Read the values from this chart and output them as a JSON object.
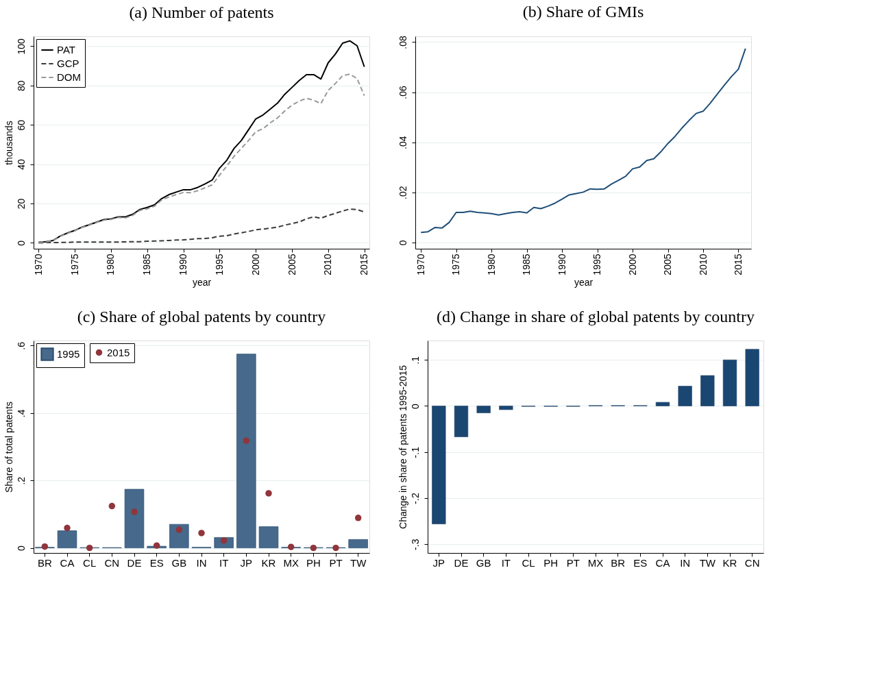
{
  "chart_data": [
    {
      "type": "line",
      "title": "(a) Number of patents",
      "xlabel": "year",
      "ylabel": "thousands",
      "x": [
        1970,
        1971,
        1972,
        1973,
        1974,
        1975,
        1976,
        1977,
        1978,
        1979,
        1980,
        1981,
        1982,
        1983,
        1984,
        1985,
        1986,
        1987,
        1988,
        1989,
        1990,
        1991,
        1992,
        1993,
        1994,
        1995,
        1996,
        1997,
        1998,
        1999,
        2000,
        2001,
        2002,
        2003,
        2004,
        2005,
        2006,
        2007,
        2008,
        2009,
        2010,
        2011,
        2012,
        2013,
        2014,
        2015
      ],
      "series": [
        {
          "name": "PAT",
          "color": "#000000",
          "line_style": "solid",
          "values": [
            0.3,
            0.6,
            1.2,
            3.5,
            5,
            6.3,
            8,
            9.2,
            10.5,
            11.8,
            12.2,
            13.2,
            13.2,
            14.5,
            17,
            18,
            19.3,
            22.5,
            24.5,
            25.8,
            27,
            27,
            28.2,
            30,
            32,
            38,
            42,
            48,
            52,
            57.5,
            63,
            65,
            68,
            71,
            75.5,
            79,
            82.5,
            85.5,
            85.5,
            83.3,
            91.5,
            96,
            101.5,
            102.7,
            100.2,
            89.5
          ]
        },
        {
          "name": "GCP",
          "color": "#3a3a3a",
          "line_style": "dashed",
          "values": [
            0,
            0.1,
            0.1,
            0.2,
            0.2,
            0.4,
            0.4,
            0.4,
            0.4,
            0.4,
            0.4,
            0.4,
            0.5,
            0.6,
            0.6,
            0.8,
            0.9,
            1,
            1.2,
            1.4,
            1.5,
            1.8,
            2.1,
            2.2,
            2.6,
            3.4,
            3.6,
            4.5,
            5.1,
            5.8,
            6.6,
            7,
            7.5,
            8,
            9,
            9.8,
            10.6,
            12.2,
            13.2,
            12.5,
            13.9,
            15,
            16.2,
            17.2,
            16.9,
            15.7
          ]
        },
        {
          "name": "DOM",
          "color": "#999999",
          "line_style": "dashed",
          "values": [
            0.2,
            0.5,
            1.1,
            3.3,
            4.8,
            6.1,
            7.8,
            9,
            10.3,
            11.5,
            11.9,
            12.9,
            12.7,
            14,
            16.5,
            17.3,
            18.6,
            21.8,
            23.3,
            24.5,
            25.6,
            25.5,
            26.5,
            28,
            29.5,
            34.5,
            39,
            44,
            48,
            52,
            56.5,
            58,
            61,
            63.5,
            67,
            70,
            72,
            73.5,
            72.5,
            70.8,
            77.5,
            81,
            85,
            85.8,
            83.5,
            74.8
          ]
        }
      ],
      "xlim": [
        1969.3,
        2015.7
      ],
      "ylim": [
        -3,
        105
      ],
      "xticks": [
        1970,
        1975,
        1980,
        1985,
        1990,
        1995,
        2000,
        2005,
        2010,
        2015
      ],
      "yticks": [
        0,
        20,
        40,
        60,
        80,
        100
      ],
      "grid": "y",
      "legend": "top left"
    },
    {
      "type": "line",
      "title": "(b) Share of GMIs",
      "xlabel": "year",
      "x": [
        1970,
        1971,
        1972,
        1973,
        1974,
        1975,
        1976,
        1977,
        1978,
        1979,
        1980,
        1981,
        1982,
        1983,
        1984,
        1985,
        1986,
        1987,
        1988,
        1989,
        1990,
        1991,
        1992,
        1993,
        1994,
        1995,
        1996,
        1997,
        1998,
        1999,
        2000,
        2001,
        2002,
        2003,
        2004,
        2005,
        2006,
        2007,
        2008,
        2009,
        2010,
        2011,
        2012,
        2013,
        2014,
        2015,
        2016
      ],
      "series": [
        {
          "color": "#1f4e79",
          "line_style": "solid",
          "values": [
            0.004,
            0.0043,
            0.006,
            0.0058,
            0.008,
            0.012,
            0.012,
            0.0125,
            0.012,
            0.0118,
            0.0115,
            0.011,
            0.0115,
            0.012,
            0.0123,
            0.0118,
            0.014,
            0.0135,
            0.0145,
            0.0157,
            0.0173,
            0.019,
            0.0195,
            0.0201,
            0.0214,
            0.0212,
            0.0214,
            0.0233,
            0.0248,
            0.0264,
            0.0294,
            0.0301,
            0.0327,
            0.0334,
            0.0362,
            0.0395,
            0.0423,
            0.0457,
            0.0487,
            0.0515,
            0.0524,
            0.0556,
            0.0592,
            0.0628,
            0.0662,
            0.0692,
            0.0774
          ]
        }
      ],
      "xlim": [
        1969.2,
        2016.8
      ],
      "ylim": [
        -0.0025,
        0.0823
      ],
      "xticks": [
        1970,
        1975,
        1980,
        1985,
        1990,
        1995,
        2000,
        2005,
        2010,
        2015
      ],
      "yticks": [
        0,
        {
          "value": 0.02,
          "label": ".02"
        },
        {
          "value": 0.04,
          "label": ".04"
        },
        {
          "value": 0.06,
          "label": ".06"
        },
        {
          "value": 0.08,
          "label": ".08"
        }
      ],
      "grid": "y"
    },
    {
      "type": "bar",
      "title": "(c) Share of global patents by country",
      "ylabel": "Share of total patents",
      "categories": [
        "BR",
        "CA",
        "CL",
        "CN",
        "DE",
        "ES",
        "GB",
        "IN",
        "IT",
        "JP",
        "KR",
        "MX",
        "PH",
        "PT",
        "TW"
      ],
      "series": [
        {
          "name": "1995",
          "color": "#46698c",
          "values": [
            0.002,
            0.051,
            0.001,
            0.001,
            0.174,
            0.005,
            0.07,
            0.002,
            0.031,
            0.575,
            0.063,
            0.002,
            0.001,
            0.001,
            0.025
          ]
        },
        {
          "name": "2015",
          "type": "scatter",
          "marker": "circle",
          "color": "#90353b",
          "values": [
            0.004,
            0.059,
            0,
            0.124,
            0.107,
            0.007,
            0.054,
            0.044,
            0.022,
            0.318,
            0.162,
            0.003,
            0,
            0,
            0.089
          ]
        }
      ],
      "ylim": [
        -0.015,
        0.615
      ],
      "yticks": [
        0,
        {
          "value": 0.2,
          "label": ".2"
        },
        {
          "value": 0.4,
          "label": ".4"
        },
        {
          "value": 0.6,
          "label": ".6"
        }
      ],
      "grid": "y",
      "legend": "top left"
    },
    {
      "type": "bar",
      "title": "(d) Change in share of global patents by country",
      "ylabel": "Change in share of patents 1995-2015",
      "categories": [
        "JP",
        "DE",
        "GB",
        "IT",
        "CL",
        "PH",
        "PT",
        "MX",
        "BR",
        "ES",
        "CA",
        "IN",
        "TW",
        "KR",
        "CN"
      ],
      "series": [
        {
          "color": "#1a4672",
          "values": [
            -0.256,
            -0.067,
            -0.015,
            -0.008,
            -0.001,
            -0.001,
            -0.001,
            0.001,
            0.001,
            0.001,
            0.008,
            0.043,
            0.066,
            0.1,
            0.123
          ]
        }
      ],
      "ylim": [
        -0.319,
        0.142
      ],
      "yticks": [
        {
          "value": -0.3,
          "label": "-.3"
        },
        {
          "value": -0.2,
          "label": "-.2"
        },
        {
          "value": -0.1,
          "label": "-.1"
        },
        0,
        {
          "value": 0.1,
          "label": ".1"
        }
      ],
      "grid": "y"
    }
  ]
}
